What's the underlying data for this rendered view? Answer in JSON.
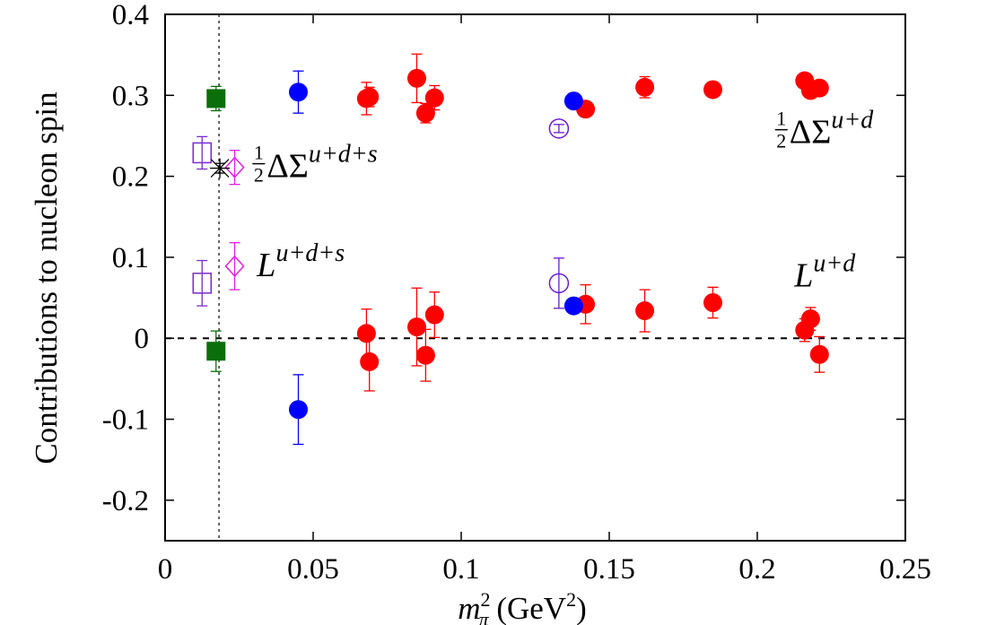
{
  "chart_data": {
    "type": "scatter",
    "title": "",
    "xlabel": "m_π² (GeV²)",
    "xlabel_parts": {
      "base": "m",
      "sub": "π",
      "sup": "2",
      "units_pre": " (GeV",
      "units_sup": "2",
      "units_post": ")"
    },
    "ylabel": "Contributions to nucleon spin",
    "xlim": [
      0,
      0.25
    ],
    "ylim": [
      -0.25,
      0.4
    ],
    "xticks": [
      0,
      0.05,
      0.1,
      0.15,
      0.2,
      0.25
    ],
    "xtick_labels": [
      "0",
      "0.05",
      "0.1",
      "0.15",
      "0.2",
      "0.25"
    ],
    "yticks": [
      -0.2,
      -0.1,
      0,
      0.1,
      0.2,
      0.3,
      0.4
    ],
    "ytick_labels": [
      "-0.2",
      "-0.1",
      "0",
      "0.1",
      "0.2",
      "0.3",
      "0.4"
    ],
    "grid": false,
    "reference_lines": [
      {
        "orientation": "horizontal",
        "value": 0,
        "style": "dashed"
      },
      {
        "orientation": "vertical",
        "value": 0.0182,
        "style": "dotted"
      }
    ],
    "annotations": [
      {
        "text": "½ΔΣ^{u+d+s}",
        "frac": "1/2",
        "main": "ΔΣ",
        "sup": "u+d+s",
        "x": 0.0295,
        "y": 0.21
      },
      {
        "text": "L^{u+d+s}",
        "main": "L",
        "sup": "u+d+s",
        "x": 0.031,
        "y": 0.088
      },
      {
        "text": "½ΔΣ^{u+d}",
        "frac": "1/2",
        "main": "ΔΣ",
        "sup": "u+d",
        "x": 0.206,
        "y": 0.252
      },
      {
        "text": "L^{u+d}",
        "main": "L",
        "sup": "u+d",
        "x": 0.2125,
        "y": 0.075
      }
    ],
    "series": [
      {
        "name": "red-filled-circles",
        "marker": "circle-filled",
        "color": "#ff0000",
        "points": [
          {
            "x": 0.068,
            "y": 0.296,
            "err": 0.02
          },
          {
            "x": 0.069,
            "y": 0.298,
            "err": 0.012
          },
          {
            "x": 0.085,
            "y": 0.321,
            "err": 0.03
          },
          {
            "x": 0.088,
            "y": 0.278,
            "err": 0.012
          },
          {
            "x": 0.091,
            "y": 0.297,
            "err": 0.015
          },
          {
            "x": 0.142,
            "y": 0.283,
            "err": 0.008
          },
          {
            "x": 0.162,
            "y": 0.31,
            "err": 0.013
          },
          {
            "x": 0.185,
            "y": 0.307,
            "err": 0.006
          },
          {
            "x": 0.216,
            "y": 0.318,
            "err": 0.006
          },
          {
            "x": 0.218,
            "y": 0.306,
            "err": 0.006
          },
          {
            "x": 0.221,
            "y": 0.309,
            "err": 0.006
          },
          {
            "x": 0.068,
            "y": 0.006,
            "err": 0.03
          },
          {
            "x": 0.069,
            "y": -0.029,
            "err": 0.036
          },
          {
            "x": 0.085,
            "y": 0.014,
            "err": 0.048
          },
          {
            "x": 0.088,
            "y": -0.021,
            "err": 0.032
          },
          {
            "x": 0.091,
            "y": 0.029,
            "err": 0.028
          },
          {
            "x": 0.142,
            "y": 0.042,
            "err": 0.024
          },
          {
            "x": 0.162,
            "y": 0.034,
            "err": 0.026
          },
          {
            "x": 0.185,
            "y": 0.044,
            "err": 0.019
          },
          {
            "x": 0.216,
            "y": 0.01,
            "err": 0.014
          },
          {
            "x": 0.218,
            "y": 0.024,
            "err": 0.014
          },
          {
            "x": 0.221,
            "y": -0.02,
            "err": 0.022
          }
        ]
      },
      {
        "name": "blue-filled-circles",
        "marker": "circle-filled",
        "color": "#0000ff",
        "points": [
          {
            "x": 0.045,
            "y": 0.304,
            "err": 0.026
          },
          {
            "x": 0.045,
            "y": -0.088,
            "err": 0.043
          },
          {
            "x": 0.138,
            "y": 0.293,
            "err": 0.004
          },
          {
            "x": 0.138,
            "y": 0.04,
            "err": 0.004
          }
        ]
      },
      {
        "name": "purple-open-circles",
        "marker": "circle-open",
        "color": "#6a1bd0",
        "points": [
          {
            "x": 0.133,
            "y": 0.259,
            "err": 0.005
          },
          {
            "x": 0.133,
            "y": 0.068,
            "err": 0.031
          }
        ]
      },
      {
        "name": "green-filled-squares",
        "marker": "square-filled",
        "color": "#0a6e0a",
        "points": [
          {
            "x": 0.0172,
            "y": 0.296,
            "err": 0.015
          },
          {
            "x": 0.0172,
            "y": -0.016,
            "err": 0.025
          }
        ]
      },
      {
        "name": "purple-open-squares",
        "marker": "square-open",
        "color": "#7a2cc8",
        "points": [
          {
            "x": 0.0125,
            "y": 0.229,
            "err": 0.02
          },
          {
            "x": 0.0125,
            "y": 0.068,
            "err": 0.028
          }
        ]
      },
      {
        "name": "magenta-open-diamonds",
        "marker": "diamond-open",
        "color": "#e020e0",
        "points": [
          {
            "x": 0.0235,
            "y": 0.211,
            "err": 0.021
          },
          {
            "x": 0.0235,
            "y": 0.089,
            "err": 0.029
          }
        ]
      },
      {
        "name": "black-star",
        "marker": "star",
        "color": "#000000",
        "points": [
          {
            "x": 0.0185,
            "y": 0.21,
            "err": 0.006
          }
        ]
      }
    ]
  }
}
